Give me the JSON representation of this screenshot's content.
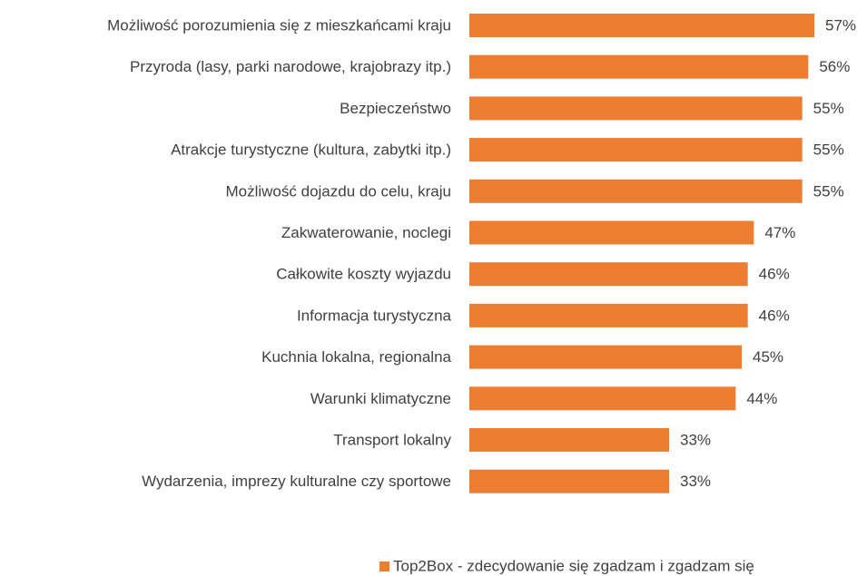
{
  "chart_data": {
    "type": "bar",
    "orientation": "horizontal",
    "categories": [
      "Możliwość porozumienia się z mieszkańcami kraju",
      "Przyroda (lasy, parki narodowe, krajobrazy itp.)",
      "Bezpieczeństwo",
      "Atrakcje turystyczne (kultura, zabytki itp.)",
      "Możliwość dojazdu do celu, kraju",
      "Zakwaterowanie, noclegi",
      "Całkowite koszty wyjazdu",
      "Informacja turystyczna",
      "Kuchnia lokalna, regionalna",
      "Warunki klimatyczne",
      "Transport lokalny",
      "Wydarzenia, imprezy kulturalne czy sportowe"
    ],
    "series": [
      {
        "name": "Top2Box - zdecydowanie się zgadzam i zgadzam się",
        "color": "#ed7d31",
        "values": [
          57,
          56,
          55,
          55,
          55,
          47,
          46,
          46,
          45,
          44,
          33,
          33
        ],
        "value_labels": [
          "57%",
          "56%",
          "55%",
          "55%",
          "55%",
          "47%",
          "46%",
          "46%",
          "45%",
          "44%",
          "33%",
          "33%"
        ]
      }
    ],
    "xlim": [
      0,
      60
    ],
    "legend": "bottom"
  }
}
